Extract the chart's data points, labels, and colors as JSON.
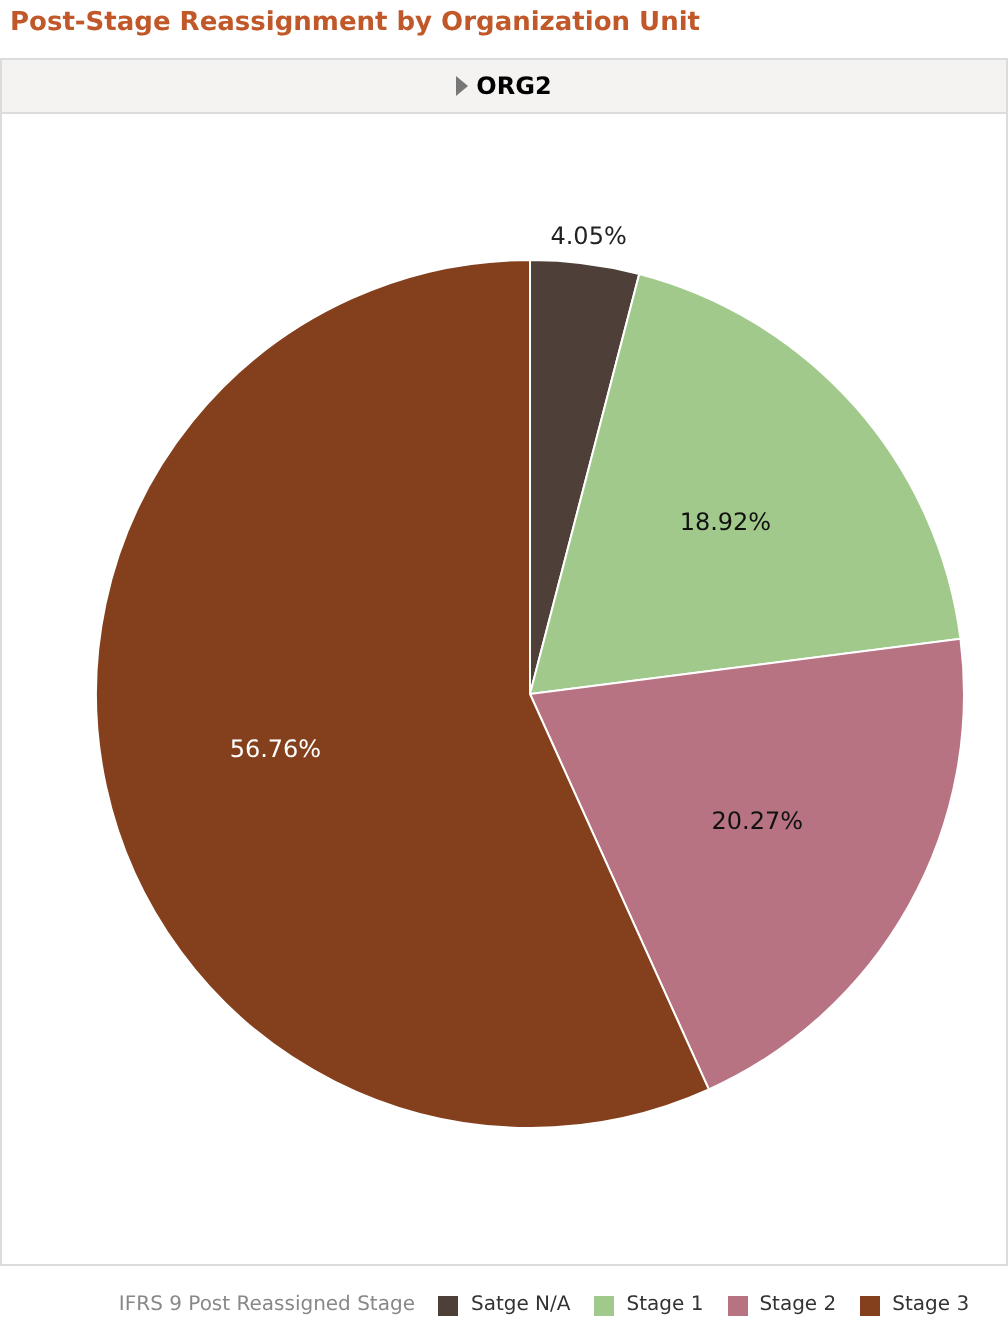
{
  "chart_data": {
    "type": "pie",
    "title": "Post-Stage Reassignment by Organization Unit",
    "subtitle": "ORG2",
    "legend_title": "IFRS 9 Post Reassigned Stage",
    "legend": "bottom",
    "categories": [
      "Satge N/A",
      "Stage 1",
      "Stage 2",
      "Stage 3"
    ],
    "values": [
      4.05,
      18.92,
      20.27,
      56.76
    ],
    "value_labels": [
      "4.05%",
      "18.92%",
      "20.27%",
      "56.76%"
    ],
    "colors": [
      "#4e4038",
      "#a2c98c",
      "#b87383",
      "#843f1c"
    ]
  }
}
